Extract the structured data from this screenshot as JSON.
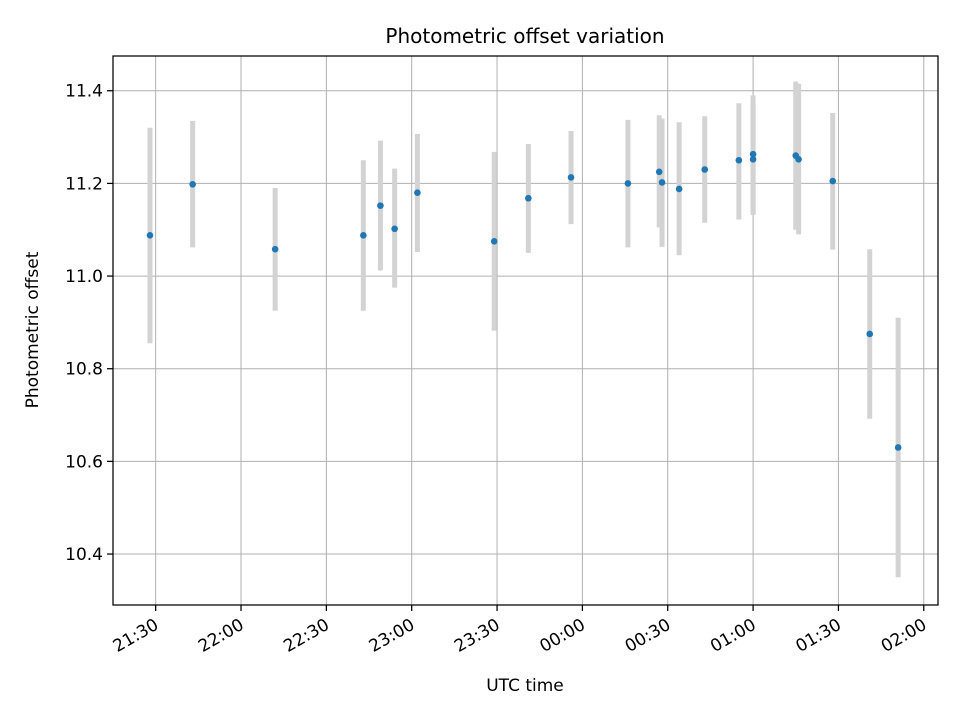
{
  "chart_data": {
    "type": "scatter",
    "title": "Photometric offset variation",
    "xlabel": "UTC time",
    "ylabel": "Photometric offset",
    "grid": true,
    "legend": "none",
    "marker_color": "#1f77b4",
    "errorbar_color": "#d3d3d3",
    "x_unit": "UTC time (h:mm; after midnight shown as 24+)",
    "xlim": [
      "21:15",
      "02:05"
    ],
    "ylim": [
      10.29,
      11.475
    ],
    "x_ticks": [
      "21:30",
      "22:00",
      "22:30",
      "23:00",
      "23:30",
      "00:00",
      "00:30",
      "01:00",
      "01:30",
      "02:00"
    ],
    "x_tick_values": [
      "21:30",
      "22:00",
      "22:30",
      "23:00",
      "23:30",
      "00:00",
      "00:30",
      "01:00",
      "01:30",
      "02:00"
    ],
    "y_ticks": [
      10.4,
      10.6,
      10.8,
      11.0,
      11.2,
      11.4
    ],
    "y_tick_labels": [
      "10.4",
      "10.6",
      "10.8",
      "11.0",
      "11.2",
      "11.4"
    ],
    "points": [
      {
        "t": "21:28",
        "y": 11.088,
        "err_lo": 10.855,
        "err_hi": 11.32
      },
      {
        "t": "21:43",
        "y": 11.198,
        "err_lo": 11.062,
        "err_hi": 11.335
      },
      {
        "t": "22:12",
        "y": 11.058,
        "err_lo": 10.925,
        "err_hi": 11.19
      },
      {
        "t": "22:43",
        "y": 11.088,
        "err_lo": 10.925,
        "err_hi": 11.25
      },
      {
        "t": "22:49",
        "y": 11.152,
        "err_lo": 11.012,
        "err_hi": 11.292
      },
      {
        "t": "22:54",
        "y": 11.102,
        "err_lo": 10.975,
        "err_hi": 11.232
      },
      {
        "t": "23:02",
        "y": 11.18,
        "err_lo": 11.052,
        "err_hi": 11.307
      },
      {
        "t": "23:29",
        "y": 11.075,
        "err_lo": 10.882,
        "err_hi": 11.268
      },
      {
        "t": "23:41",
        "y": 11.168,
        "err_lo": 11.05,
        "err_hi": 11.285
      },
      {
        "t": "23:56",
        "y": 11.213,
        "err_lo": 11.112,
        "err_hi": 11.313
      },
      {
        "t": "00:16",
        "y": 11.2,
        "err_lo": 11.062,
        "err_hi": 11.337
      },
      {
        "t": "00:27",
        "y": 11.225,
        "err_lo": 11.105,
        "err_hi": 11.347
      },
      {
        "t": "00:28",
        "y": 11.202,
        "err_lo": 11.063,
        "err_hi": 11.34
      },
      {
        "t": "00:34",
        "y": 11.188,
        "err_lo": 11.045,
        "err_hi": 11.332
      },
      {
        "t": "00:43",
        "y": 11.23,
        "err_lo": 11.115,
        "err_hi": 11.345
      },
      {
        "t": "00:55",
        "y": 11.25,
        "err_lo": 11.122,
        "err_hi": 11.373
      },
      {
        "t": "01:00",
        "y": 11.263,
        "err_lo": 11.132,
        "err_hi": 11.39
      },
      {
        "t": "01:00",
        "y": 11.252,
        "err_lo": 11.135,
        "err_hi": 11.375
      },
      {
        "t": "01:15",
        "y": 11.26,
        "err_lo": 11.1,
        "err_hi": 11.42
      },
      {
        "t": "01:16",
        "y": 11.252,
        "err_lo": 11.09,
        "err_hi": 11.415
      },
      {
        "t": "01:28",
        "y": 11.205,
        "err_lo": 11.057,
        "err_hi": 11.352
      },
      {
        "t": "01:41",
        "y": 10.875,
        "err_lo": 10.692,
        "err_hi": 11.058
      },
      {
        "t": "01:51",
        "y": 10.63,
        "err_lo": 10.35,
        "err_hi": 10.91
      }
    ]
  }
}
